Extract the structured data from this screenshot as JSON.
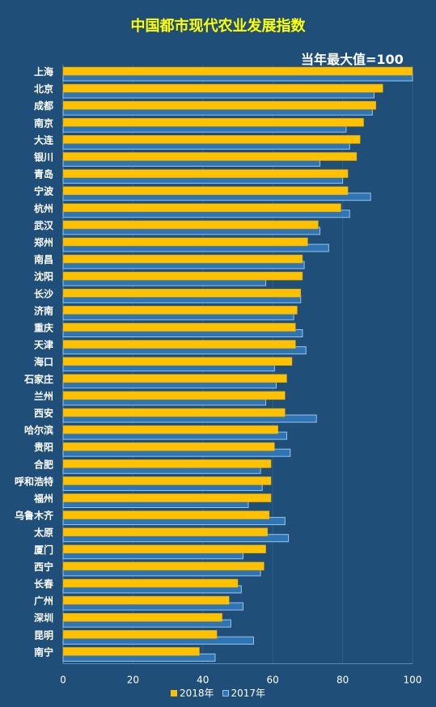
{
  "chart_data": {
    "type": "bar",
    "orientation": "horizontal",
    "title": "中国都市现代农业发展指数",
    "annotation": "当年最大值=100",
    "categories": [
      "上海",
      "北京",
      "成都",
      "南京",
      "大连",
      "银川",
      "青岛",
      "宁波",
      "杭州",
      "武汉",
      "郑州",
      "南昌",
      "沈阳",
      "长沙",
      "济南",
      "重庆",
      "天津",
      "海口",
      "石家庄",
      "兰州",
      "西安",
      "哈尔滨",
      "贵阳",
      "合肥",
      "呼和浩特",
      "福州",
      "乌鲁木齐",
      "太原",
      "厦门",
      "西宁",
      "长春",
      "广州",
      "深圳",
      "昆明",
      "南宁"
    ],
    "series": [
      {
        "name": "2018年",
        "color": "#ffc000",
        "values": [
          100,
          91.5,
          89.5,
          86,
          85,
          84,
          81.5,
          81.5,
          79.5,
          73,
          70,
          68.5,
          68.5,
          68,
          67,
          66.5,
          66.5,
          65.5,
          64,
          63.5,
          63.5,
          61.5,
          60.5,
          59.5,
          59.5,
          59.5,
          59,
          58.5,
          58,
          57.5,
          50,
          47.5,
          45.5,
          44,
          39
        ]
      },
      {
        "name": "2017年",
        "color": "#2e75b6",
        "values": [
          100,
          89,
          88.5,
          81,
          82,
          73.5,
          80,
          88,
          82,
          73.5,
          76,
          69,
          58,
          68,
          66,
          68.5,
          69.5,
          60.5,
          61,
          58,
          72.5,
          64,
          65,
          56.5,
          57,
          53,
          63.5,
          64.5,
          51.5,
          56.5,
          51,
          51.5,
          48,
          54.5,
          43.5
        ]
      }
    ],
    "xlim": [
      0,
      100
    ],
    "xticks": [
      0,
      20,
      40,
      60,
      80,
      100
    ],
    "grid": true,
    "legend_position": "bottom"
  }
}
